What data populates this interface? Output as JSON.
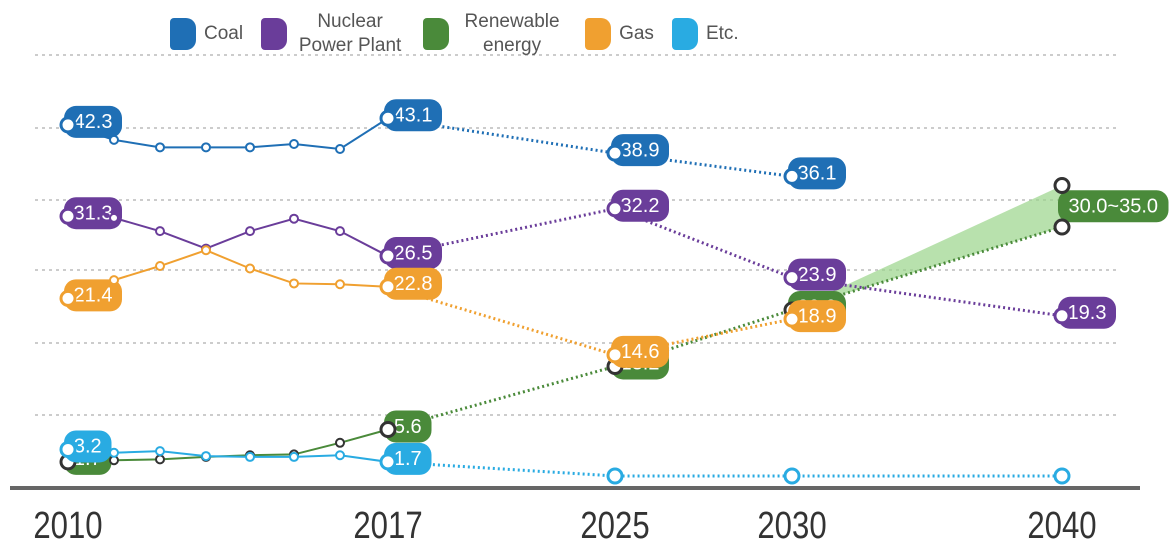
{
  "chart_data": {
    "type": "line",
    "categories": [
      "2010",
      null,
      null,
      null,
      null,
      null,
      null,
      "2017",
      "2025",
      "2030",
      "2040"
    ],
    "ylim": [
      0,
      50
    ],
    "series": [
      {
        "name": "Coal",
        "color": "#1f6fb5",
        "values": [
          42.3,
          40.5,
          39.6,
          39.6,
          39.6,
          40.0,
          39.4,
          43.1,
          38.9,
          36.1,
          null
        ],
        "value_labels": [
          "42.3",
          null,
          null,
          null,
          null,
          null,
          null,
          "43.1",
          "38.9",
          "36.1",
          null
        ]
      },
      {
        "name": "Nuclear Power Plant",
        "color": "#6a3d9a",
        "values": [
          31.3,
          31.1,
          29.5,
          27.4,
          29.5,
          31.0,
          29.5,
          26.5,
          32.2,
          23.9,
          19.3
        ],
        "value_labels": [
          "31.3",
          null,
          null,
          null,
          null,
          null,
          null,
          "26.5",
          "32.2",
          "23.9",
          "19.3"
        ]
      },
      {
        "name": "Renewable energy",
        "color": "#4a8a3a",
        "values": [
          1.7,
          1.9,
          2.0,
          2.3,
          2.5,
          2.6,
          4.0,
          5.6,
          13.2,
          20.0,
          30.0
        ],
        "upper": [
          null,
          null,
          null,
          null,
          null,
          null,
          null,
          null,
          null,
          null,
          35.0
        ],
        "value_labels": [
          "1.7",
          null,
          null,
          null,
          null,
          null,
          null,
          "5.6",
          "13.2",
          "20.0",
          "30.0~35.0"
        ]
      },
      {
        "name": "Gas",
        "color": "#f0a030",
        "values": [
          21.4,
          23.6,
          25.3,
          27.2,
          25.0,
          23.2,
          23.1,
          22.8,
          14.6,
          18.9,
          null
        ],
        "value_labels": [
          "21.4",
          null,
          null,
          null,
          null,
          null,
          null,
          "22.8",
          "14.6",
          "18.9",
          null
        ]
      },
      {
        "name": "Etc.",
        "color": "#29abe2",
        "values": [
          3.2,
          2.8,
          3.0,
          2.4,
          2.3,
          2.3,
          2.5,
          1.7,
          0,
          0,
          0
        ],
        "value_labels": [
          "3.2",
          null,
          null,
          null,
          null,
          null,
          null,
          "1.7",
          null,
          null,
          null
        ]
      }
    ]
  }
}
